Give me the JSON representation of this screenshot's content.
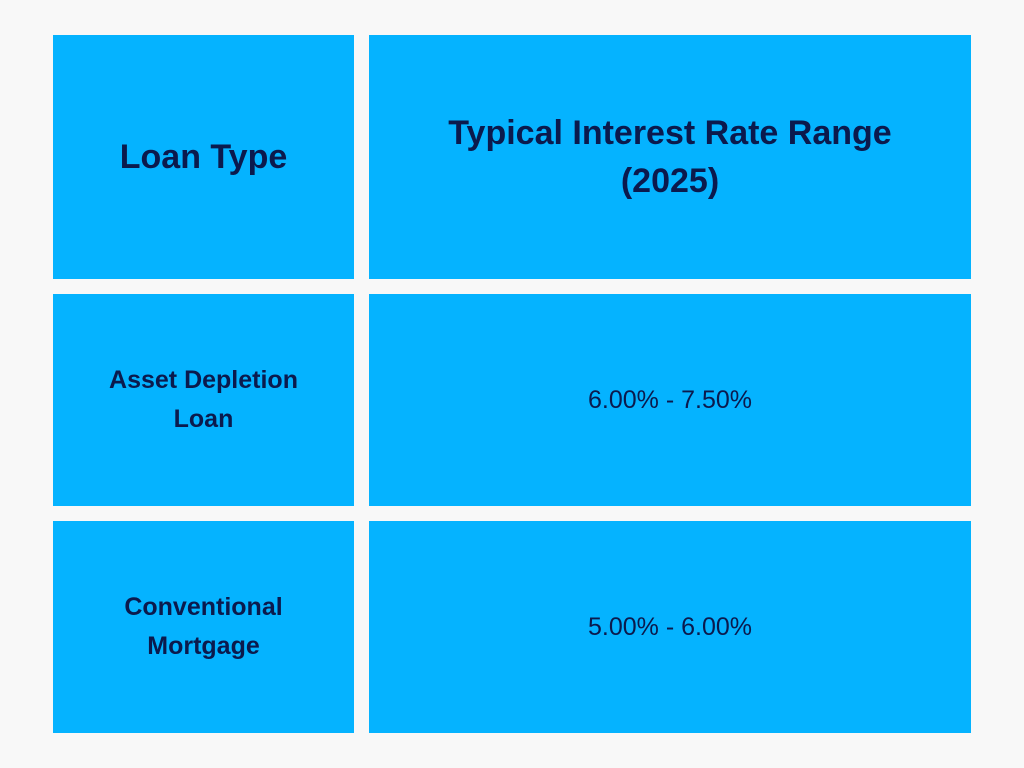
{
  "table": {
    "headers": [
      "Loan Type",
      "Typical Interest Rate Range (2025)"
    ],
    "rows": [
      {
        "loan_type": "Asset Depletion Loan",
        "rate_range": "6.00% - 7.50%"
      },
      {
        "loan_type": "Conventional Mortgage",
        "rate_range": "5.00% - 6.00%"
      }
    ]
  },
  "colors": {
    "background": "#f8f8f8",
    "cell": "#05b3ff",
    "text": "#0b1a4d"
  }
}
